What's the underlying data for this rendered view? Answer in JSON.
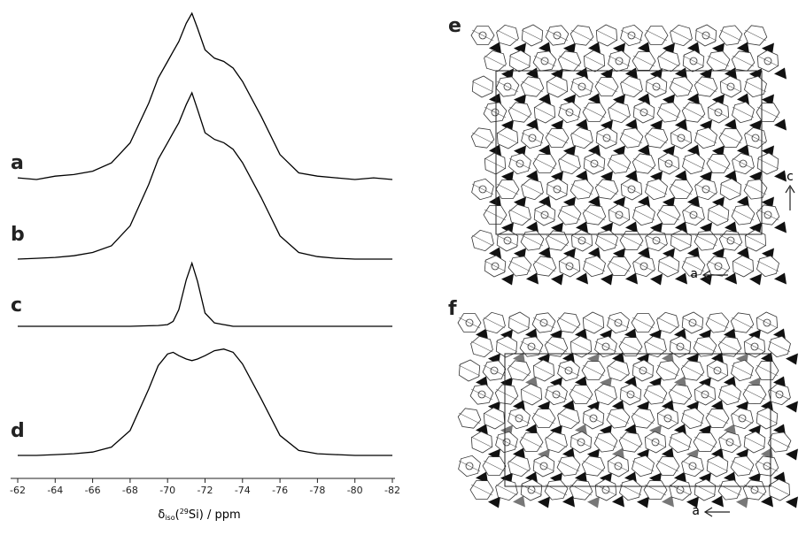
{
  "chart_data": {
    "type": "line",
    "x_label": {
      "symbol": "δ",
      "subscript": "iso",
      "open": "(",
      "superscript": "29",
      "rest": "Si) / ppm"
    },
    "x": [
      -62,
      -63,
      -64,
      -65,
      -66,
      -67,
      -68,
      -69,
      -69.5,
      -70,
      -70.3,
      -70.6,
      -71,
      -71.3,
      -71.6,
      -72,
      -72.5,
      -73,
      -73.5,
      -74,
      -75,
      -76,
      -77,
      -78,
      -79,
      -80,
      -81,
      -82
    ],
    "xlim": [
      -62,
      -82
    ],
    "xticks": [
      -62,
      -64,
      -66,
      -68,
      -70,
      -72,
      -74,
      -76,
      -78,
      -80,
      -82
    ],
    "series": [
      {
        "name": "a",
        "color": "#000000",
        "values": [
          1,
          0,
          2,
          3,
          5,
          10,
          22,
          46,
          61,
          71,
          77,
          83,
          94,
          100,
          91,
          78,
          73,
          71,
          67,
          59,
          38,
          15,
          4,
          2,
          1,
          0,
          1,
          0
        ]
      },
      {
        "name": "b",
        "color": "#000000",
        "values": [
          0,
          0.5,
          1,
          2,
          4,
          8,
          20,
          45,
          60,
          70,
          76,
          82,
          93,
          100,
          90,
          76,
          72,
          70,
          66,
          58,
          37,
          14,
          4,
          1.5,
          0.5,
          0,
          0,
          0
        ]
      },
      {
        "name": "c",
        "color": "#000000",
        "values": [
          0,
          0,
          0,
          0,
          0,
          0,
          0,
          0.3,
          0.5,
          1,
          3,
          10,
          28,
          38,
          27,
          8,
          2,
          1,
          0,
          0,
          0,
          0,
          0,
          0,
          0,
          0,
          0,
          0
        ]
      },
      {
        "name": "d",
        "color": "#000000",
        "values": [
          0,
          0,
          0.5,
          1,
          2,
          5,
          15,
          40,
          54,
          61,
          62,
          60,
          58,
          57,
          58,
          60,
          63,
          64,
          62,
          55,
          34,
          12,
          3,
          1,
          0.5,
          0,
          0,
          0
        ]
      }
    ]
  },
  "panels": {
    "e": {
      "label": "e",
      "axis_c": "c",
      "axis_a": "a"
    },
    "f": {
      "label": "f",
      "axis_a": "a"
    }
  }
}
